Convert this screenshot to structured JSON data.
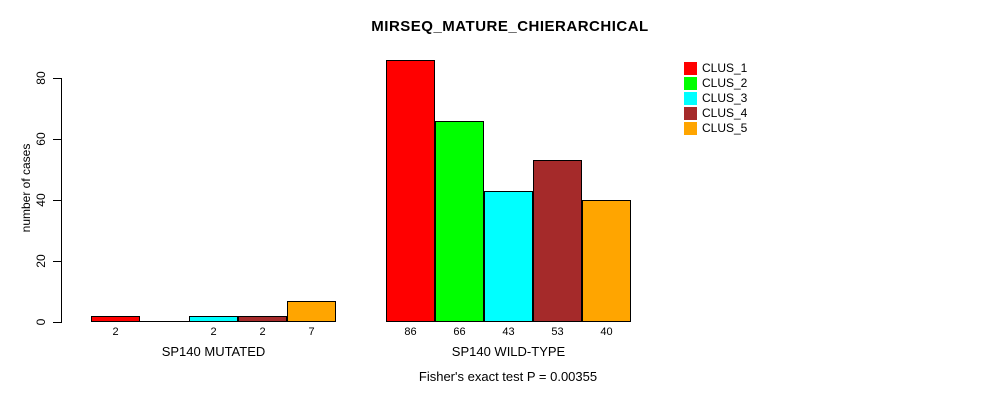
{
  "chart_data": {
    "type": "bar",
    "title": "MIRSEQ_MATURE_CHIERARCHICAL",
    "ylabel": "number of cases",
    "xlabel": "",
    "footer": "Fisher's exact test P = 0.00355",
    "categories": [
      "SP140 MUTATED",
      "SP140 WILD-TYPE"
    ],
    "series": [
      {
        "name": "CLUS_1",
        "color": "#FF0000",
        "values": [
          2,
          86
        ]
      },
      {
        "name": "CLUS_2",
        "color": "#00FF00",
        "values": [
          0,
          66
        ]
      },
      {
        "name": "CLUS_3",
        "color": "#00FFFF",
        "values": [
          2,
          43
        ]
      },
      {
        "name": "CLUS_4",
        "color": "#A52A2A",
        "values": [
          2,
          53
        ]
      },
      {
        "name": "CLUS_5",
        "color": "#FFA500",
        "values": [
          7,
          40
        ]
      }
    ],
    "value_labels": {
      "SP140 MUTATED": [
        "2",
        "",
        "2",
        "2",
        "7"
      ],
      "SP140 WILD-TYPE": [
        "86",
        "66",
        "43",
        "53",
        "40"
      ]
    },
    "hide_zero_value_labels": true,
    "yticks": [
      0,
      20,
      40,
      60,
      80
    ],
    "ylim": [
      0,
      86
    ],
    "grid": false,
    "legend_position": "right",
    "legend": [
      "CLUS_1",
      "CLUS_2",
      "CLUS_3",
      "CLUS_4",
      "CLUS_5"
    ],
    "colors": {
      "bar_border": "#000000",
      "axis": "#000000",
      "text": "#000000",
      "background": "#FFFFFF"
    }
  }
}
